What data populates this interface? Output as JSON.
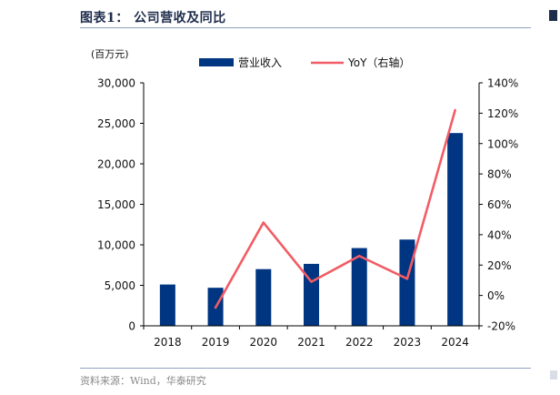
{
  "figure": {
    "title": "图表1：  公司营收及同比",
    "source": "资料来源：Wind，华泰研究"
  },
  "chart_data": {
    "type": "bar",
    "categories": [
      "2018",
      "2019",
      "2020",
      "2021",
      "2022",
      "2023",
      "2024"
    ],
    "series": [
      {
        "name": "营业收入",
        "type": "bar",
        "axis": "left",
        "color": "#003581",
        "values": [
          5100,
          4700,
          7000,
          7650,
          9600,
          10650,
          23800
        ]
      },
      {
        "name": "YoY（右轴）",
        "type": "line",
        "axis": "right",
        "color": "#f25c64",
        "values": [
          null,
          -8,
          48,
          9,
          26,
          11,
          122
        ]
      }
    ],
    "left_axis": {
      "unit_label": "(百万元)",
      "ylim": [
        0,
        30000
      ],
      "ticks": [
        0,
        5000,
        10000,
        15000,
        20000,
        25000,
        30000
      ],
      "tick_labels": [
        "0",
        "5,000",
        "10,000",
        "15,000",
        "20,000",
        "25,000",
        "30,000"
      ]
    },
    "right_axis": {
      "ylim": [
        -20,
        140
      ],
      "ticks": [
        -20,
        0,
        20,
        40,
        60,
        80,
        100,
        120,
        140
      ],
      "tick_labels": [
        "-20%",
        "0%",
        "20%",
        "40%",
        "60%",
        "80%",
        "100%",
        "120%",
        "140%"
      ]
    },
    "grid": false,
    "legend": {
      "position": "top"
    }
  }
}
